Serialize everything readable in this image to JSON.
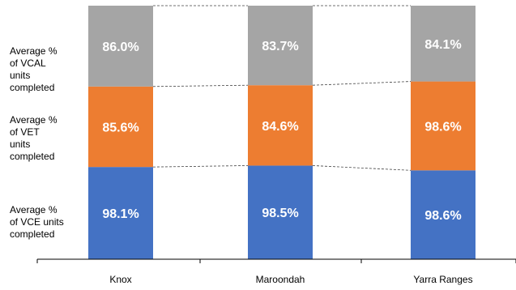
{
  "chart_data": {
    "type": "bar",
    "stacked": true,
    "normalized": true,
    "categories": [
      "Knox",
      "Maroondah",
      "Yarra Ranges"
    ],
    "series": [
      {
        "name": "Average %\nof VCE units\ncompleted",
        "values": [
          98.1,
          98.5,
          98.6
        ],
        "labels": [
          "98.1%",
          "98.5%",
          "98.6%"
        ],
        "color": "#4472C4"
      },
      {
        "name": "Average %\nof VET\nunits\ncompleted",
        "values": [
          85.6,
          84.6,
          98.6
        ],
        "labels": [
          "85.6%",
          "84.6%",
          "98.6%"
        ],
        "color": "#ED7D31"
      },
      {
        "name": "Average %\nof VCAL\nunits\ncompleted",
        "values": [
          86.0,
          83.7,
          84.1
        ],
        "labels": [
          "86.0%",
          "83.7%",
          "84.1%"
        ],
        "color": "#A5A5A5"
      }
    ],
    "series_lines": true,
    "grid": false,
    "legend": "left"
  }
}
